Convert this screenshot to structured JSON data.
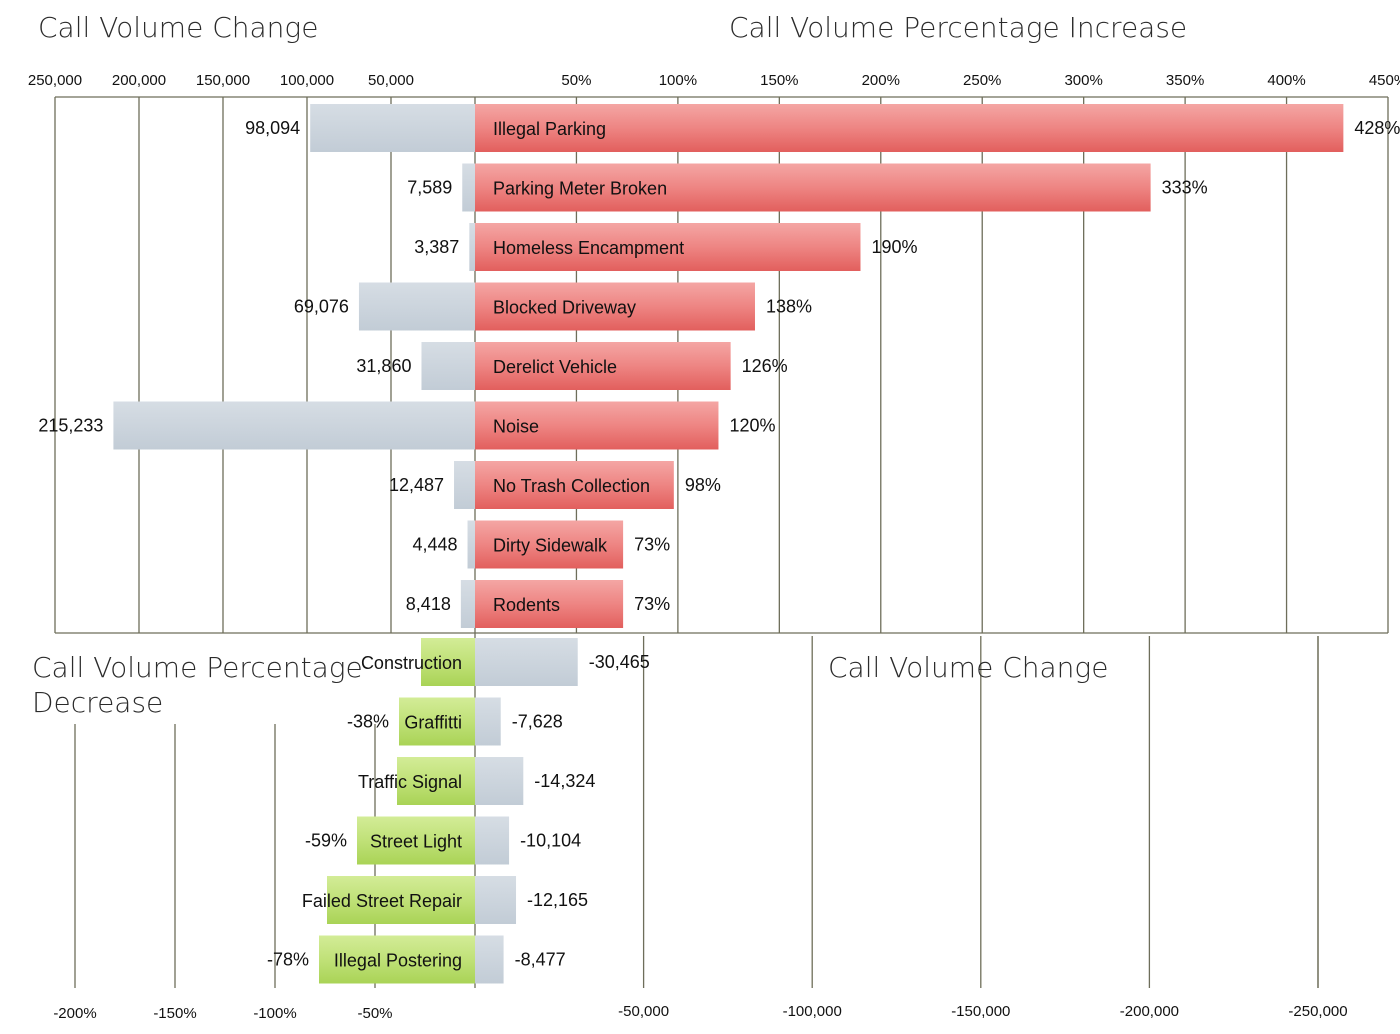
{
  "titles": {
    "top_left": "Call Volume Change",
    "top_right": "Call Volume Percentage Increase",
    "bottom_left_line1": "Call Volume Percentage",
    "bottom_left_line2": "Decrease",
    "bottom_right": "Call Volume Change"
  },
  "colors": {
    "increase_bar": "#e8706e",
    "decrease_bar": "#b9dc6a",
    "volume_bar": "#cbd5de"
  },
  "chart_data": [
    {
      "type": "bar",
      "orientation": "horizontal",
      "title": "Call Volume Change",
      "direction": "leftward",
      "xlim": [
        0,
        250000
      ],
      "ticks": [
        "250,000",
        "200,000",
        "150,000",
        "100,000",
        "50,000"
      ],
      "categories": [
        "Illegal Parking",
        "Parking Meter Broken",
        "Homeless Encampment",
        "Blocked Driveway",
        "Derelict Vehicle",
        "Noise",
        "No Trash Collection",
        "Dirty Sidewalk",
        "Rodents"
      ],
      "values": [
        98094,
        7589,
        3387,
        69076,
        31860,
        215233,
        12487,
        4448,
        8418
      ],
      "labels": [
        "98,094",
        "7,589",
        "3,387",
        "69,076",
        "31,860",
        "215,233",
        "12,487",
        "4,448",
        "8,418"
      ]
    },
    {
      "type": "bar",
      "orientation": "horizontal",
      "title": "Call Volume Percentage Increase",
      "xlim": [
        0,
        450
      ],
      "ticks": [
        "50%",
        "100%",
        "150%",
        "200%",
        "250%",
        "300%",
        "350%",
        "400%",
        "450%"
      ],
      "categories": [
        "Illegal Parking",
        "Parking Meter Broken",
        "Homeless Encampment",
        "Blocked Driveway",
        "Derelict Vehicle",
        "Noise",
        "No Trash Collection",
        "Dirty Sidewalk",
        "Rodents"
      ],
      "values": [
        428,
        333,
        190,
        138,
        126,
        120,
        98,
        73,
        73
      ],
      "labels": [
        "428%",
        "333%",
        "190%",
        "138%",
        "126%",
        "120%",
        "98%",
        "73%",
        "73%"
      ]
    },
    {
      "type": "bar",
      "orientation": "horizontal",
      "title": "Call Volume Percentage Decrease",
      "direction": "leftward",
      "xlim": [
        0,
        -200
      ],
      "ticks": [
        "-200%",
        "-150%",
        "-100%",
        "-50%"
      ],
      "categories": [
        "Construction",
        "Graffitti",
        "Traffic Signal",
        "Street Light",
        "Failed Street Repair",
        "Illegal Postering"
      ],
      "values": [
        -27,
        -38,
        -39,
        -59,
        -74,
        -78
      ],
      "labels": [
        "",
        "-38%",
        "",
        "-59%",
        "",
        "-78%"
      ]
    },
    {
      "type": "bar",
      "orientation": "horizontal",
      "title": "Call Volume Change",
      "xlim": [
        0,
        -250000
      ],
      "ticks": [
        "-50,000",
        "-100,000",
        "-150,000",
        "-200,000",
        "-250,000"
      ],
      "categories": [
        "Construction",
        "Graffitti",
        "Traffic Signal",
        "Street Light",
        "Failed Street Repair",
        "Illegal Postering"
      ],
      "values": [
        -30465,
        -7628,
        -14324,
        -10104,
        -12165,
        -8477
      ],
      "labels": [
        "-30,465",
        "-7,628",
        "-14,324",
        "-10,104",
        "-12,165",
        "-8,477"
      ]
    }
  ]
}
